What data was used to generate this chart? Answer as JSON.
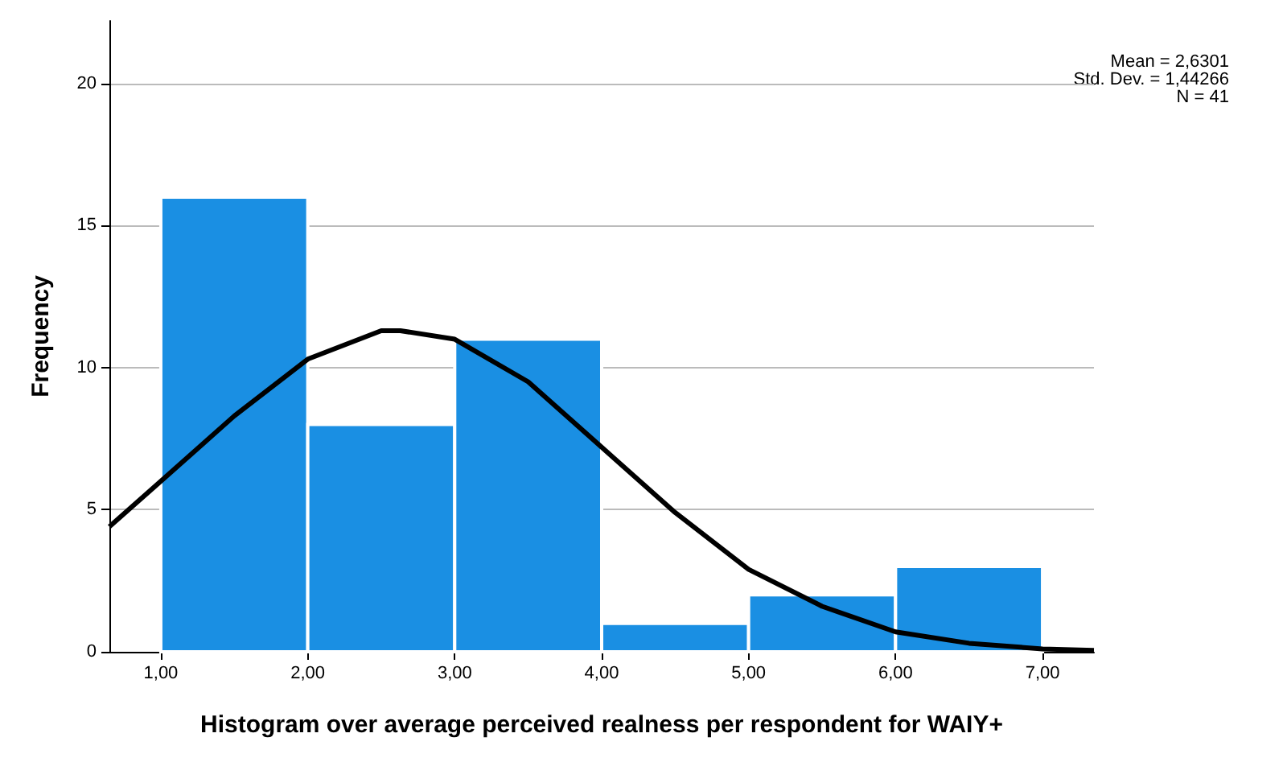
{
  "chart_data": {
    "type": "histogram",
    "xlabel": "Histogram over average perceived realness per respondent for WAIY+",
    "ylabel": "Frequency",
    "bins": [
      1,
      2,
      3,
      4,
      5,
      6,
      7
    ],
    "values": [
      16,
      8,
      11,
      1,
      2,
      3
    ],
    "color": "#1a8fe3",
    "series": [
      {
        "type": "line",
        "color": "#000000",
        "x": [
          0.65,
          1,
          1.5,
          2,
          2.5,
          2.63,
          3,
          3.5,
          4,
          4.5,
          5,
          5.5,
          6,
          6.5,
          7,
          7.35
        ],
        "values": [
          4.4,
          6,
          8.3,
          10.3,
          11.3,
          11.3,
          11,
          9.5,
          7.2,
          4.9,
          2.9,
          1.6,
          0.7,
          0.3,
          0.1,
          0.05
        ]
      }
    ],
    "marker": "none",
    "xlim": [
      0.65,
      7.35
    ],
    "xticks": [
      {
        "value": 1,
        "label": "1,00"
      },
      {
        "value": 2,
        "label": "2,00"
      },
      {
        "value": 3,
        "label": "3,00"
      },
      {
        "value": 4,
        "label": "4,00"
      },
      {
        "value": 5,
        "label": "5,00"
      },
      {
        "value": 6,
        "label": "6,00"
      },
      {
        "value": 7,
        "label": "7,00"
      }
    ],
    "ylim": [
      0,
      22.2
    ],
    "yticks": [
      0,
      5,
      10,
      15,
      20
    ],
    "grid": "y",
    "annotations": [
      "Mean = 2,6301",
      "Std. Dev. = 1,44266",
      "N = 41"
    ]
  }
}
